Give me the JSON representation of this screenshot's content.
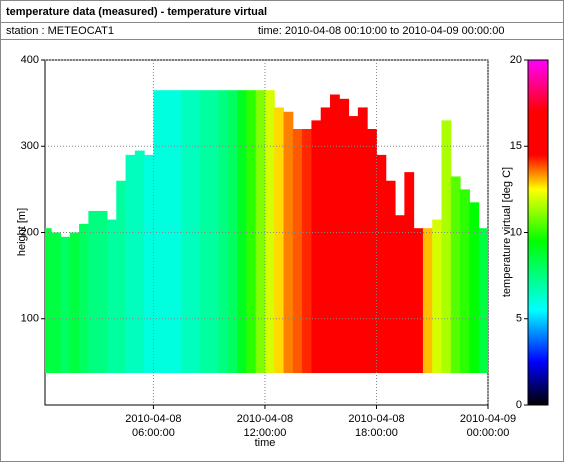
{
  "header": {
    "title": "temperature data (measured) - temperature virtual",
    "station": "station : METEOCAT1",
    "time": "time: 2010-04-08 00:10:00 to 2010-04-09 00:00:00"
  },
  "chart_data": {
    "type": "heatmap",
    "xlabel": "time",
    "ylabel": "height [m]",
    "colorbar_label": "temperature virtual [deg C]",
    "xlim": [
      "2010-04-08 00:10:00",
      "2010-04-09 00:00:00"
    ],
    "xticks": [
      "2010-04-08 06:00:00",
      "2010-04-08 12:00:00",
      "2010-04-08 18:00:00",
      "2010-04-09 00:00:00"
    ],
    "ylim": [
      0,
      400
    ],
    "yticks": [
      100,
      200,
      300,
      400
    ],
    "clim": [
      0,
      20
    ],
    "cticks": [
      0,
      5,
      10,
      15,
      20
    ],
    "colorscale": [
      {
        "value": 0,
        "color": "#000000"
      },
      {
        "value": 2.5,
        "color": "#0000ff"
      },
      {
        "value": 5.5,
        "color": "#00ffff"
      },
      {
        "value": 9.5,
        "color": "#00ff00"
      },
      {
        "value": 12.5,
        "color": "#ffff00"
      },
      {
        "value": 14.5,
        "color": "#ff0000"
      },
      {
        "value": 17,
        "color": "#ff0000"
      },
      {
        "value": 20,
        "color": "#ff00ff"
      }
    ],
    "grid": true,
    "base": 37,
    "x": [
      "2010-04-08 00:15:00",
      "2010-04-08 00:45:00",
      "2010-04-08 01:15:00",
      "2010-04-08 01:45:00",
      "2010-04-08 02:15:00",
      "2010-04-08 02:45:00",
      "2010-04-08 03:15:00",
      "2010-04-08 03:45:00",
      "2010-04-08 04:15:00",
      "2010-04-08 04:45:00",
      "2010-04-08 05:15:00",
      "2010-04-08 05:45:00",
      "2010-04-08 06:15:00",
      "2010-04-08 06:45:00",
      "2010-04-08 07:15:00",
      "2010-04-08 07:45:00",
      "2010-04-08 08:15:00",
      "2010-04-08 08:45:00",
      "2010-04-08 09:15:00",
      "2010-04-08 09:45:00",
      "2010-04-08 10:15:00",
      "2010-04-08 10:45:00",
      "2010-04-08 11:15:00",
      "2010-04-08 11:45:00",
      "2010-04-08 12:15:00",
      "2010-04-08 12:45:00",
      "2010-04-08 13:15:00",
      "2010-04-08 13:45:00",
      "2010-04-08 14:15:00",
      "2010-04-08 14:45:00",
      "2010-04-08 15:15:00",
      "2010-04-08 15:45:00",
      "2010-04-08 16:15:00",
      "2010-04-08 16:45:00",
      "2010-04-08 17:15:00",
      "2010-04-08 17:45:00",
      "2010-04-08 18:15:00",
      "2010-04-08 18:45:00",
      "2010-04-08 19:15:00",
      "2010-04-08 19:45:00",
      "2010-04-08 20:15:00",
      "2010-04-08 20:45:00",
      "2010-04-08 21:15:00",
      "2010-04-08 21:45:00",
      "2010-04-08 22:15:00",
      "2010-04-08 22:45:00",
      "2010-04-08 23:15:00",
      "2010-04-08 23:45:00"
    ],
    "top": [
      205,
      200,
      195,
      200,
      210,
      225,
      225,
      215,
      260,
      290,
      295,
      290,
      365,
      365,
      365,
      365,
      365,
      365,
      365,
      365,
      365,
      365,
      365,
      365,
      365,
      345,
      340,
      320,
      320,
      330,
      345,
      360,
      355,
      335,
      345,
      320,
      290,
      260,
      220,
      270,
      205,
      205,
      215,
      330,
      265,
      250,
      235,
      205
    ],
    "values": [
      8.5,
      8.5,
      8,
      8.5,
      8,
      7.5,
      7.5,
      7,
      7,
      6.5,
      6.5,
      6,
      6,
      6,
      6,
      6.5,
      6.5,
      7,
      7,
      7.5,
      8,
      9,
      10,
      11,
      12,
      12.8,
      13.5,
      13.8,
      14.2,
      14.5,
      15,
      15,
      15.2,
      15.5,
      15.5,
      15.5,
      15.5,
      15.5,
      15.5,
      15,
      14.5,
      13,
      12,
      11.5,
      10.5,
      10,
      9.5,
      8.5
    ]
  }
}
